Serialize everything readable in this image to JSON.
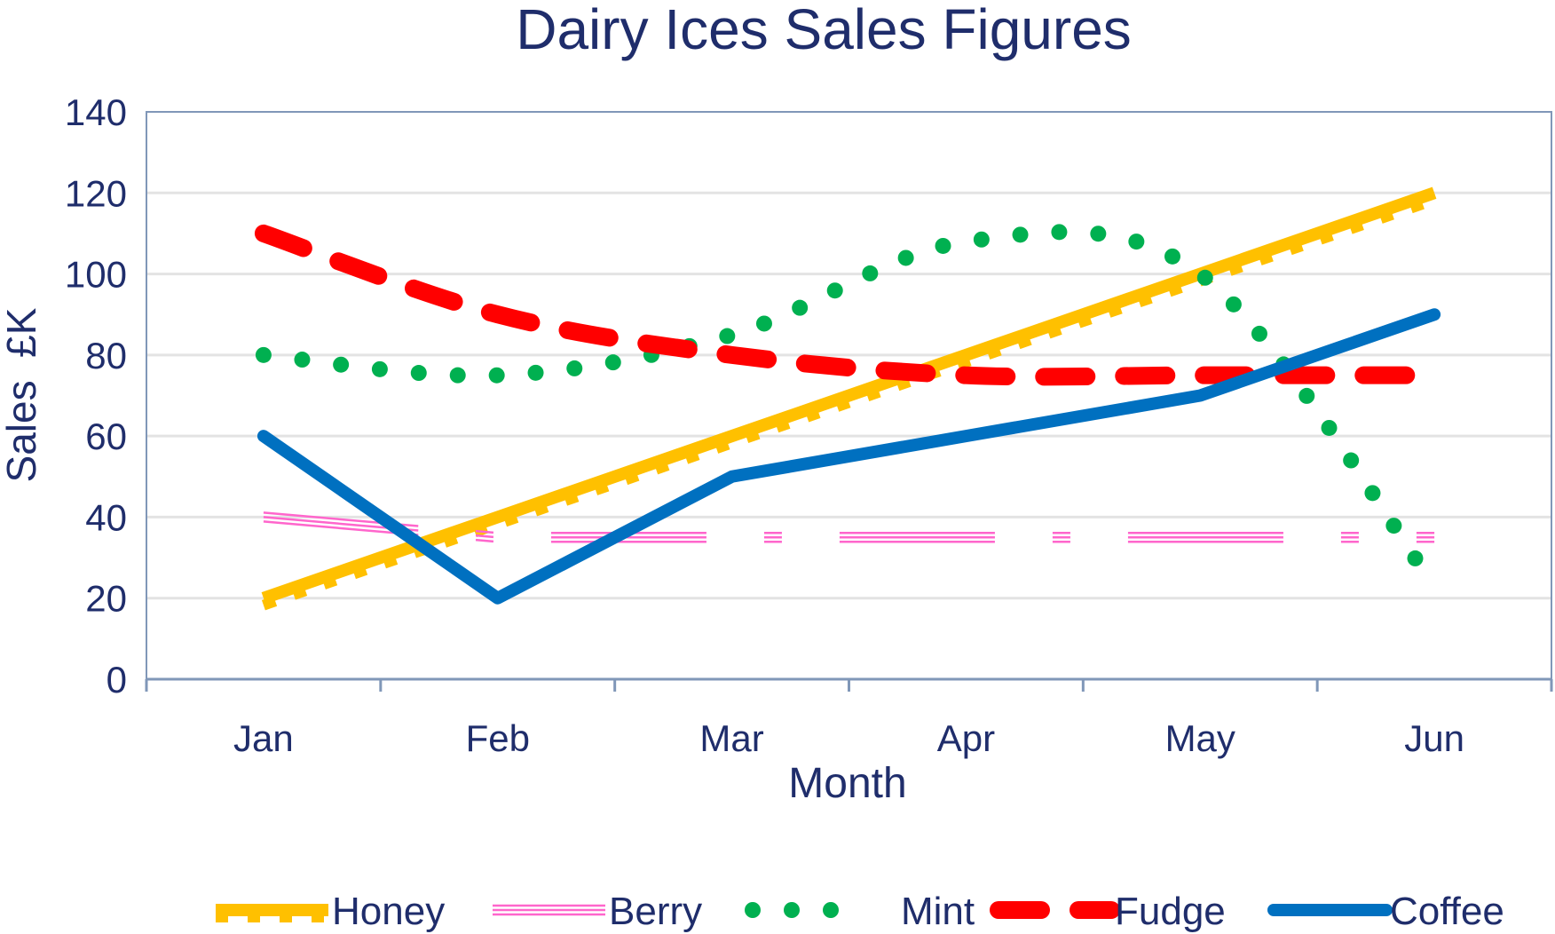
{
  "chart_data": {
    "type": "line",
    "title": "Dairy Ices Sales Figures",
    "xlabel": "Month",
    "ylabel": "Sales  £K",
    "categories": [
      "Jan",
      "Feb",
      "Mar",
      "Apr",
      "May",
      "Jun"
    ],
    "ylim": [
      0,
      140
    ],
    "yticks": [
      0,
      20,
      40,
      60,
      80,
      100,
      120,
      140
    ],
    "grid": true,
    "legend_position": "bottom",
    "series": [
      {
        "name": "Honey",
        "values": [
          20,
          40,
          60,
          80,
          100,
          120
        ],
        "color": "#ffc000",
        "style": "thick-tick",
        "smooth": false
      },
      {
        "name": "Berry",
        "values": [
          40,
          35,
          35,
          35,
          35,
          35
        ],
        "color": "#ff66cc",
        "style": "triple-dashdot",
        "smooth": false
      },
      {
        "name": "Mint",
        "values": [
          80,
          75,
          85,
          108,
          100,
          23
        ],
        "color": "#00b050",
        "style": "dotted",
        "smooth": true
      },
      {
        "name": "Fudge",
        "values": [
          110,
          90,
          80,
          75,
          75,
          75
        ],
        "color": "#ff0000",
        "style": "dashed",
        "smooth": true
      },
      {
        "name": "Coffee",
        "values": [
          60,
          20,
          50,
          60,
          70,
          90
        ],
        "color": "#0070c0",
        "style": "solid",
        "smooth": false
      }
    ]
  }
}
